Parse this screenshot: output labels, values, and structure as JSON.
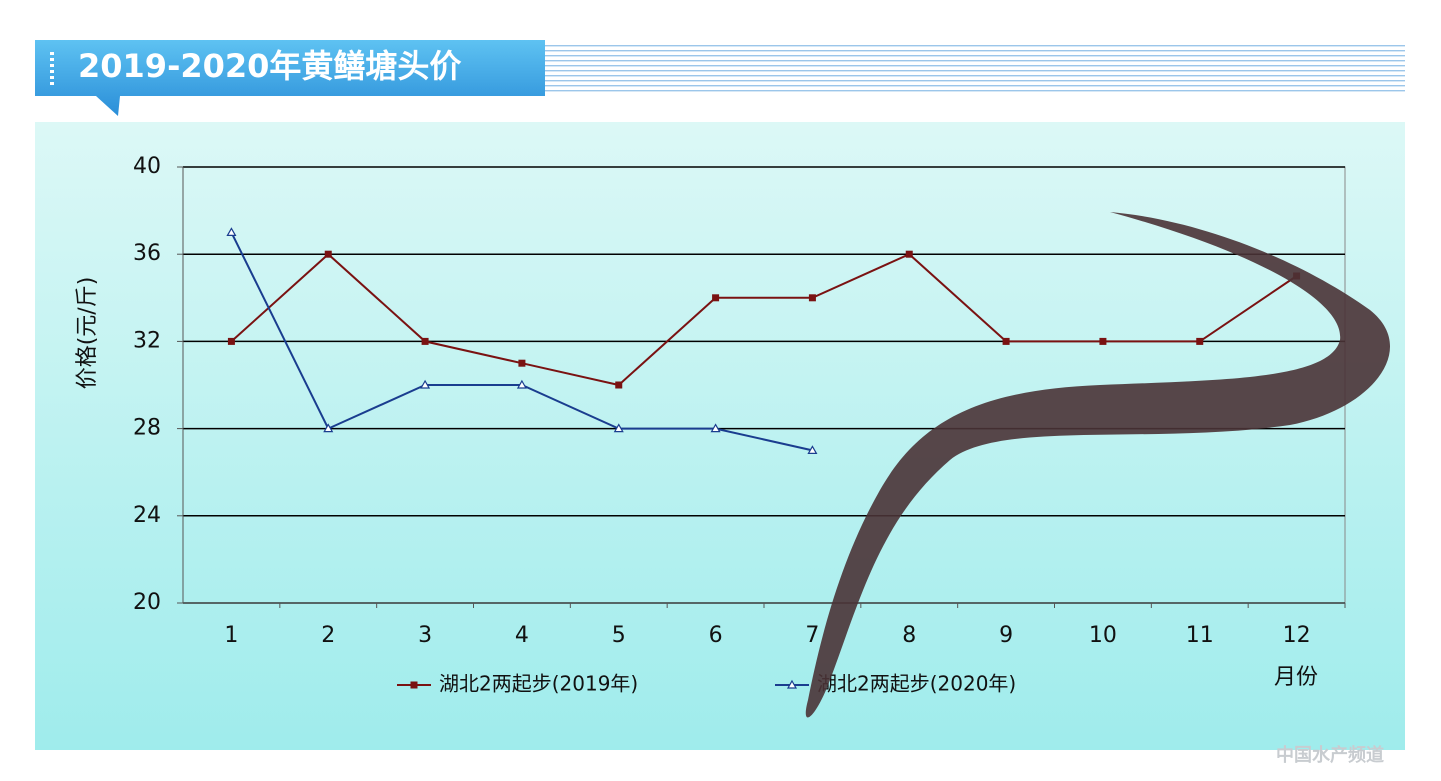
{
  "chart_data": {
    "type": "line",
    "title": "2019-2020年黄鳝塘头价",
    "y_label": "价格(元/斤)",
    "x_label": "月份",
    "categories": [
      "1",
      "2",
      "3",
      "4",
      "5",
      "6",
      "7",
      "8",
      "9",
      "10",
      "11",
      "12"
    ],
    "series": [
      {
        "name": "湖北2两起步(2019年)",
        "color": "#7a1212",
        "marker": "square",
        "values": [
          32,
          36,
          32,
          31,
          30,
          34,
          34,
          36,
          32,
          32,
          32,
          35
        ]
      },
      {
        "name": "湖北2两起步(2020年)",
        "color": "#1a3d8f",
        "marker": "triangle",
        "values": [
          37,
          28,
          30,
          30,
          28,
          28,
          27,
          null,
          null,
          null,
          null,
          null
        ]
      }
    ],
    "ylim": [
      20,
      40
    ],
    "yticks": [
      20,
      24,
      28,
      32,
      36,
      40
    ],
    "grid": true,
    "watermark": "中国水产频道"
  }
}
